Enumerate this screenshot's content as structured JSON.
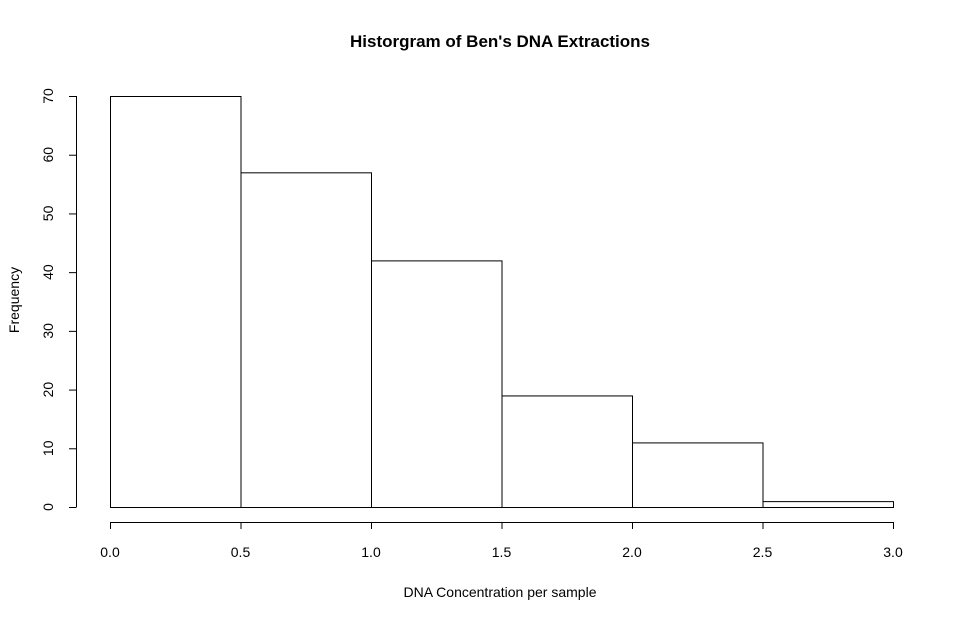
{
  "chart_data": {
    "type": "bar",
    "title": "Historgram of Ben's DNA Extractions",
    "xlabel": "DNA Concentration per sample",
    "ylabel": "Frequency",
    "bins": [
      {
        "from": 0.0,
        "to": 0.5,
        "count": 70
      },
      {
        "from": 0.5,
        "to": 1.0,
        "count": 57
      },
      {
        "from": 1.0,
        "to": 1.5,
        "count": 42
      },
      {
        "from": 1.5,
        "to": 2.0,
        "count": 19
      },
      {
        "from": 2.0,
        "to": 2.5,
        "count": 11
      },
      {
        "from": 2.5,
        "to": 3.0,
        "count": 1
      }
    ],
    "xlim": [
      0,
      3
    ],
    "ylim": [
      0,
      70
    ],
    "x_ticks": [
      "0.0",
      "0.5",
      "1.0",
      "1.5",
      "2.0",
      "2.5",
      "3.0"
    ],
    "y_ticks": [
      "0",
      "10",
      "20",
      "30",
      "40",
      "50",
      "60",
      "70"
    ],
    "grid": false,
    "legend": "none",
    "colors": {
      "bar_fill": "#ffffff",
      "bar_stroke": "#000000"
    }
  }
}
